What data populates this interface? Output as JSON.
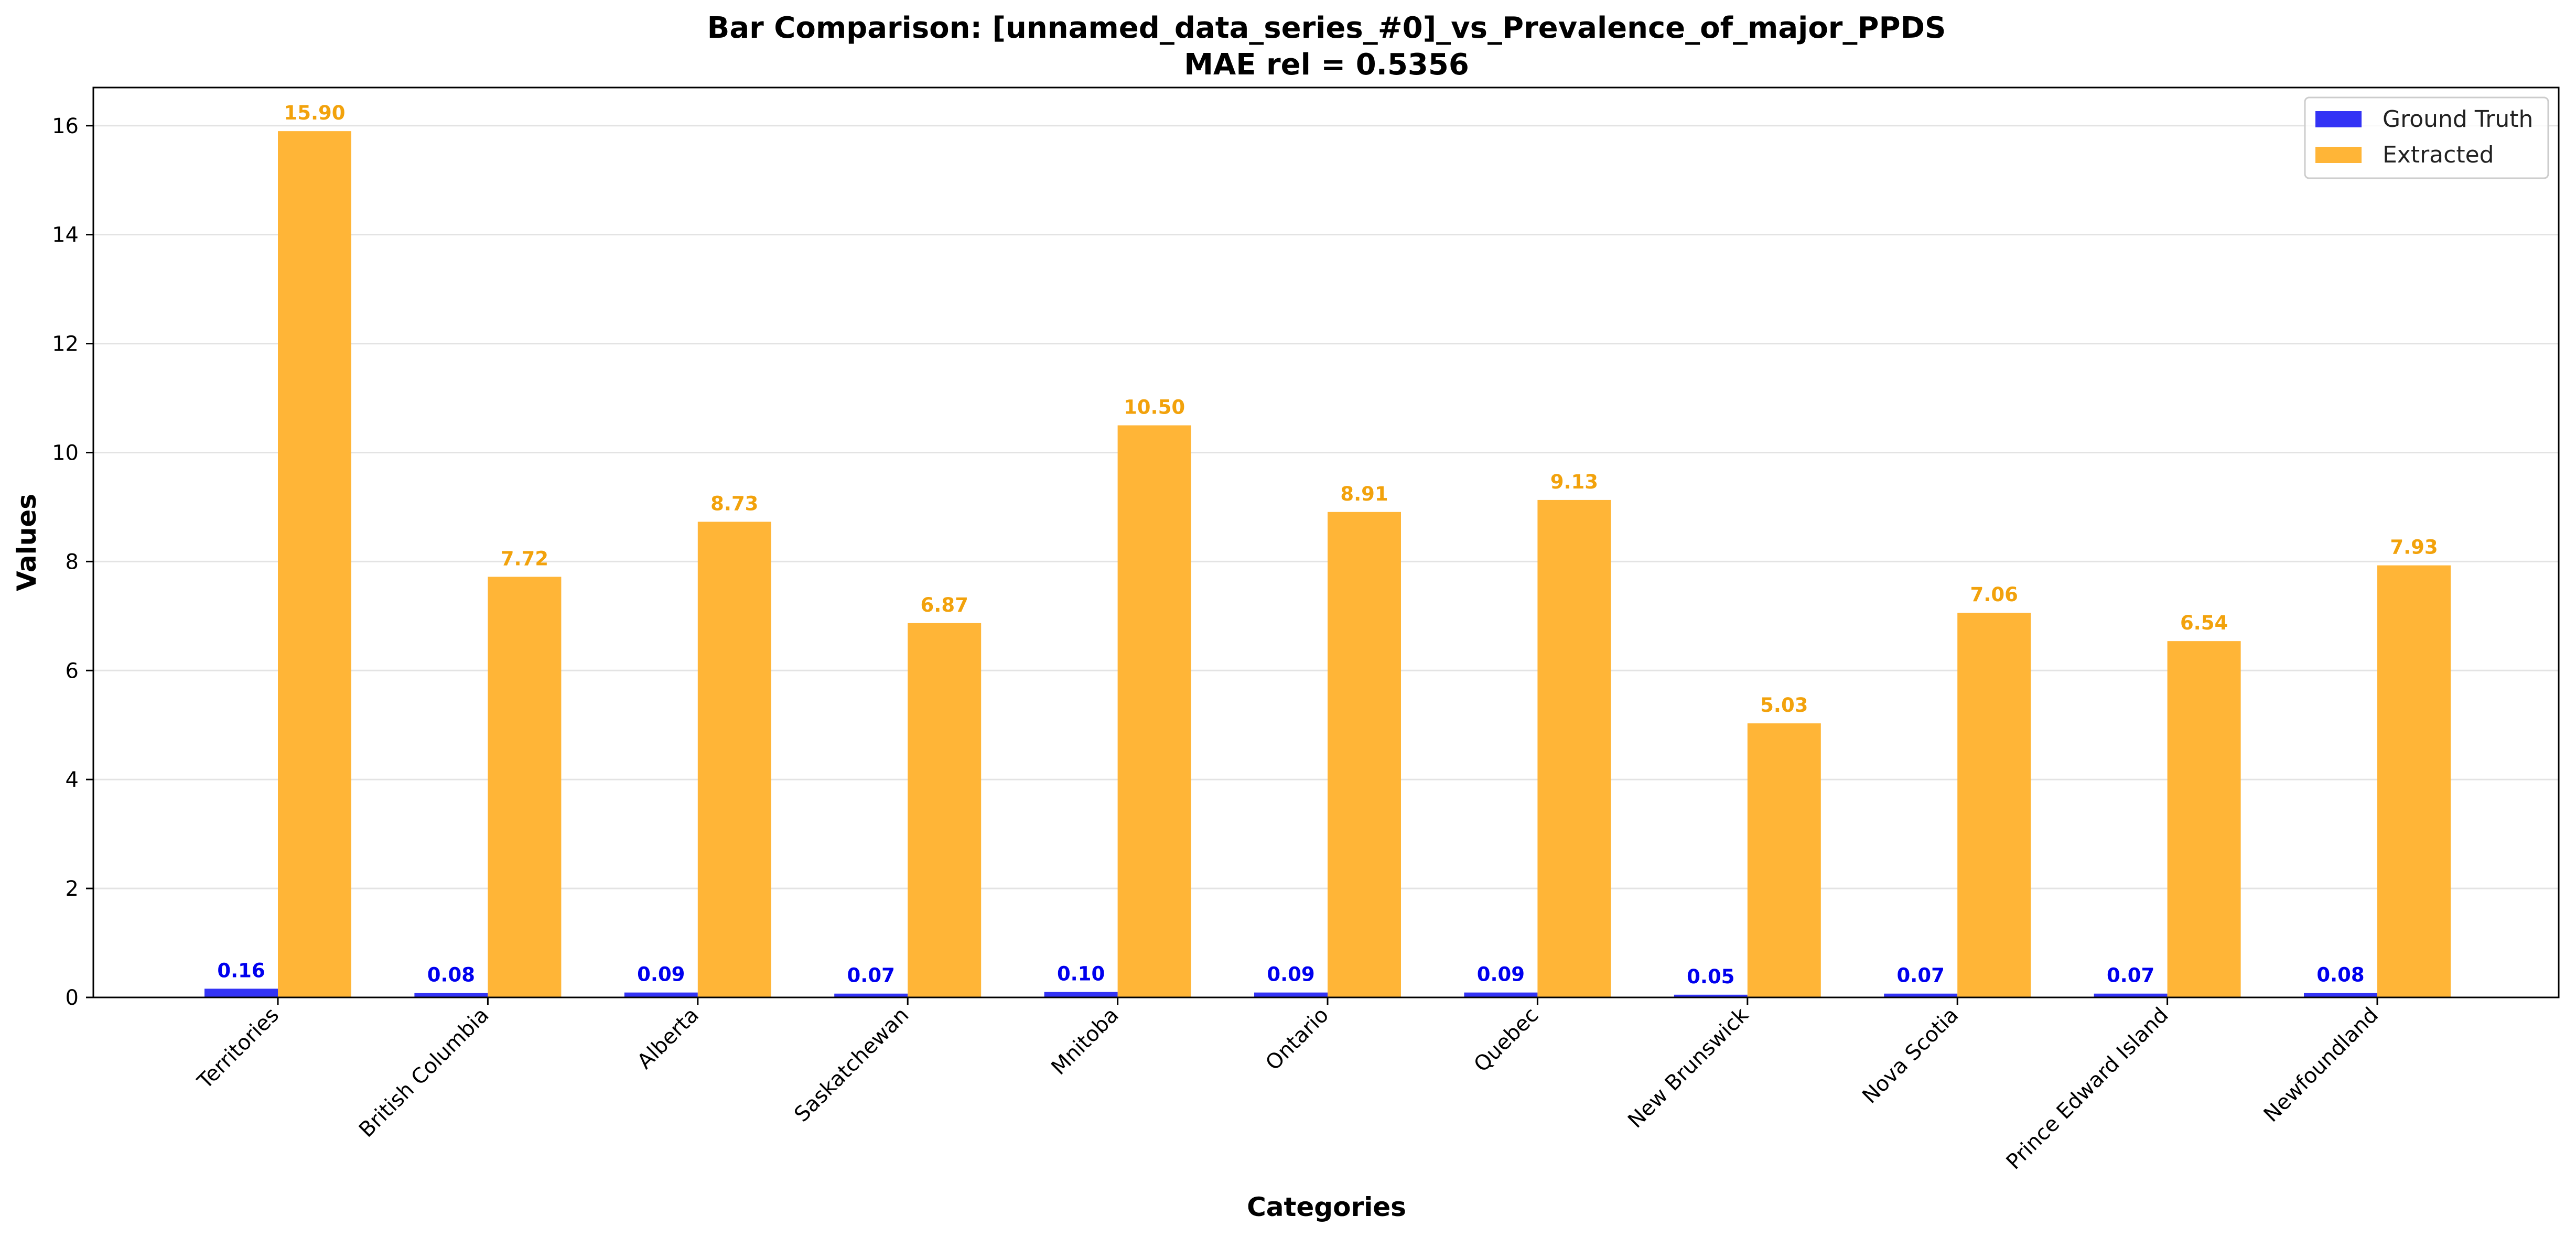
{
  "chart_data": {
    "type": "bar",
    "title_line1": "Bar Comparison: [unnamed_data_series_#0]_vs_Prevalence_of_major_PPDS",
    "title_line2": "MAE rel = 0.5356",
    "xlabel": "Categories",
    "ylabel": "Values",
    "ylim": [
      0,
      16.7
    ],
    "yticks": [
      "0",
      "2",
      "4",
      "6",
      "8",
      "10",
      "12",
      "14",
      "16"
    ],
    "grid": "horizontal",
    "legend_position": "top-right",
    "categories": [
      "Territories",
      "British Columbia",
      "Alberta",
      "Saskatchewan",
      "Mnitoba",
      "Ontario",
      "Quebec",
      "New Brunswick",
      "Nova Scotia",
      "Prince Edward Island",
      "Newfoundland"
    ],
    "series": [
      {
        "name": "Ground Truth",
        "color": "#3333f5",
        "label_color": "#0000ee",
        "values": [
          0.16,
          0.08,
          0.09,
          0.07,
          0.1,
          0.09,
          0.09,
          0.05,
          0.07,
          0.07,
          0.08
        ],
        "labels": [
          "0.16",
          "0.08",
          "0.09",
          "0.07",
          "0.10",
          "0.09",
          "0.09",
          "0.05",
          "0.07",
          "0.07",
          "0.08"
        ]
      },
      {
        "name": "Extracted",
        "color": "#ffb537",
        "label_color": "#f2a20c",
        "values": [
          15.9,
          7.72,
          8.73,
          6.87,
          10.5,
          8.91,
          9.13,
          5.03,
          7.06,
          6.54,
          7.93
        ],
        "labels": [
          "15.90",
          "7.72",
          "8.73",
          "6.87",
          "10.50",
          "8.91",
          "9.13",
          "5.03",
          "7.06",
          "6.54",
          "7.93"
        ]
      }
    ]
  }
}
